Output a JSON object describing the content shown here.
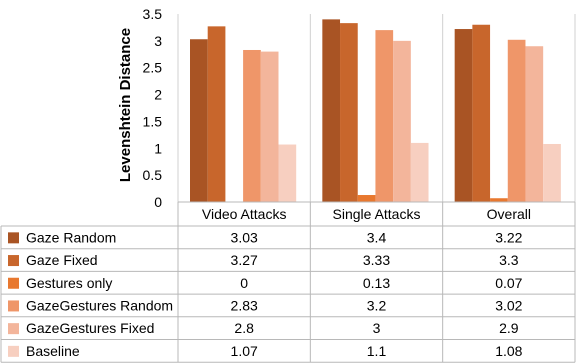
{
  "chart_data": {
    "type": "bar",
    "title": "",
    "xlabel": "",
    "ylabel": "Levenshtein Distance",
    "ylim": [
      0,
      3.5
    ],
    "yticks": [
      0,
      0.5,
      1,
      1.5,
      2,
      2.5,
      3,
      3.5
    ],
    "ytick_labels": [
      "0",
      "0.5",
      "1",
      "1.5",
      "2",
      "2.5",
      "3",
      "3.5"
    ],
    "grid": false,
    "legend": "data-table-below",
    "categories": [
      "Video Attacks",
      "Single Attacks",
      "Overall"
    ],
    "series": [
      {
        "name": "Gaze Random",
        "values": [
          3.03,
          3.4,
          3.22
        ],
        "labels": [
          "3.03",
          "3.4",
          "3.22"
        ],
        "color": "#a95424"
      },
      {
        "name": "Gaze Fixed",
        "values": [
          3.27,
          3.33,
          3.3
        ],
        "labels": [
          "3.27",
          "3.33",
          "3.3"
        ],
        "color": "#c8662c"
      },
      {
        "name": "Gestures only",
        "values": [
          0,
          0.13,
          0.07
        ],
        "labels": [
          "0",
          "0.13",
          "0.07"
        ],
        "color": "#e8782f"
      },
      {
        "name": "GazeGestures Random",
        "values": [
          2.83,
          3.2,
          3.02
        ],
        "labels": [
          "2.83",
          "3.2",
          "3.02"
        ],
        "color": "#ef9669"
      },
      {
        "name": "GazeGestures Fixed",
        "values": [
          2.8,
          3,
          2.9
        ],
        "labels": [
          "2.8",
          "3",
          "2.9"
        ],
        "color": "#f3b59b"
      },
      {
        "name": "Baseline",
        "values": [
          1.07,
          1.1,
          1.08
        ],
        "labels": [
          "1.07",
          "1.1",
          "1.08"
        ],
        "color": "#f7cfc0"
      }
    ]
  }
}
